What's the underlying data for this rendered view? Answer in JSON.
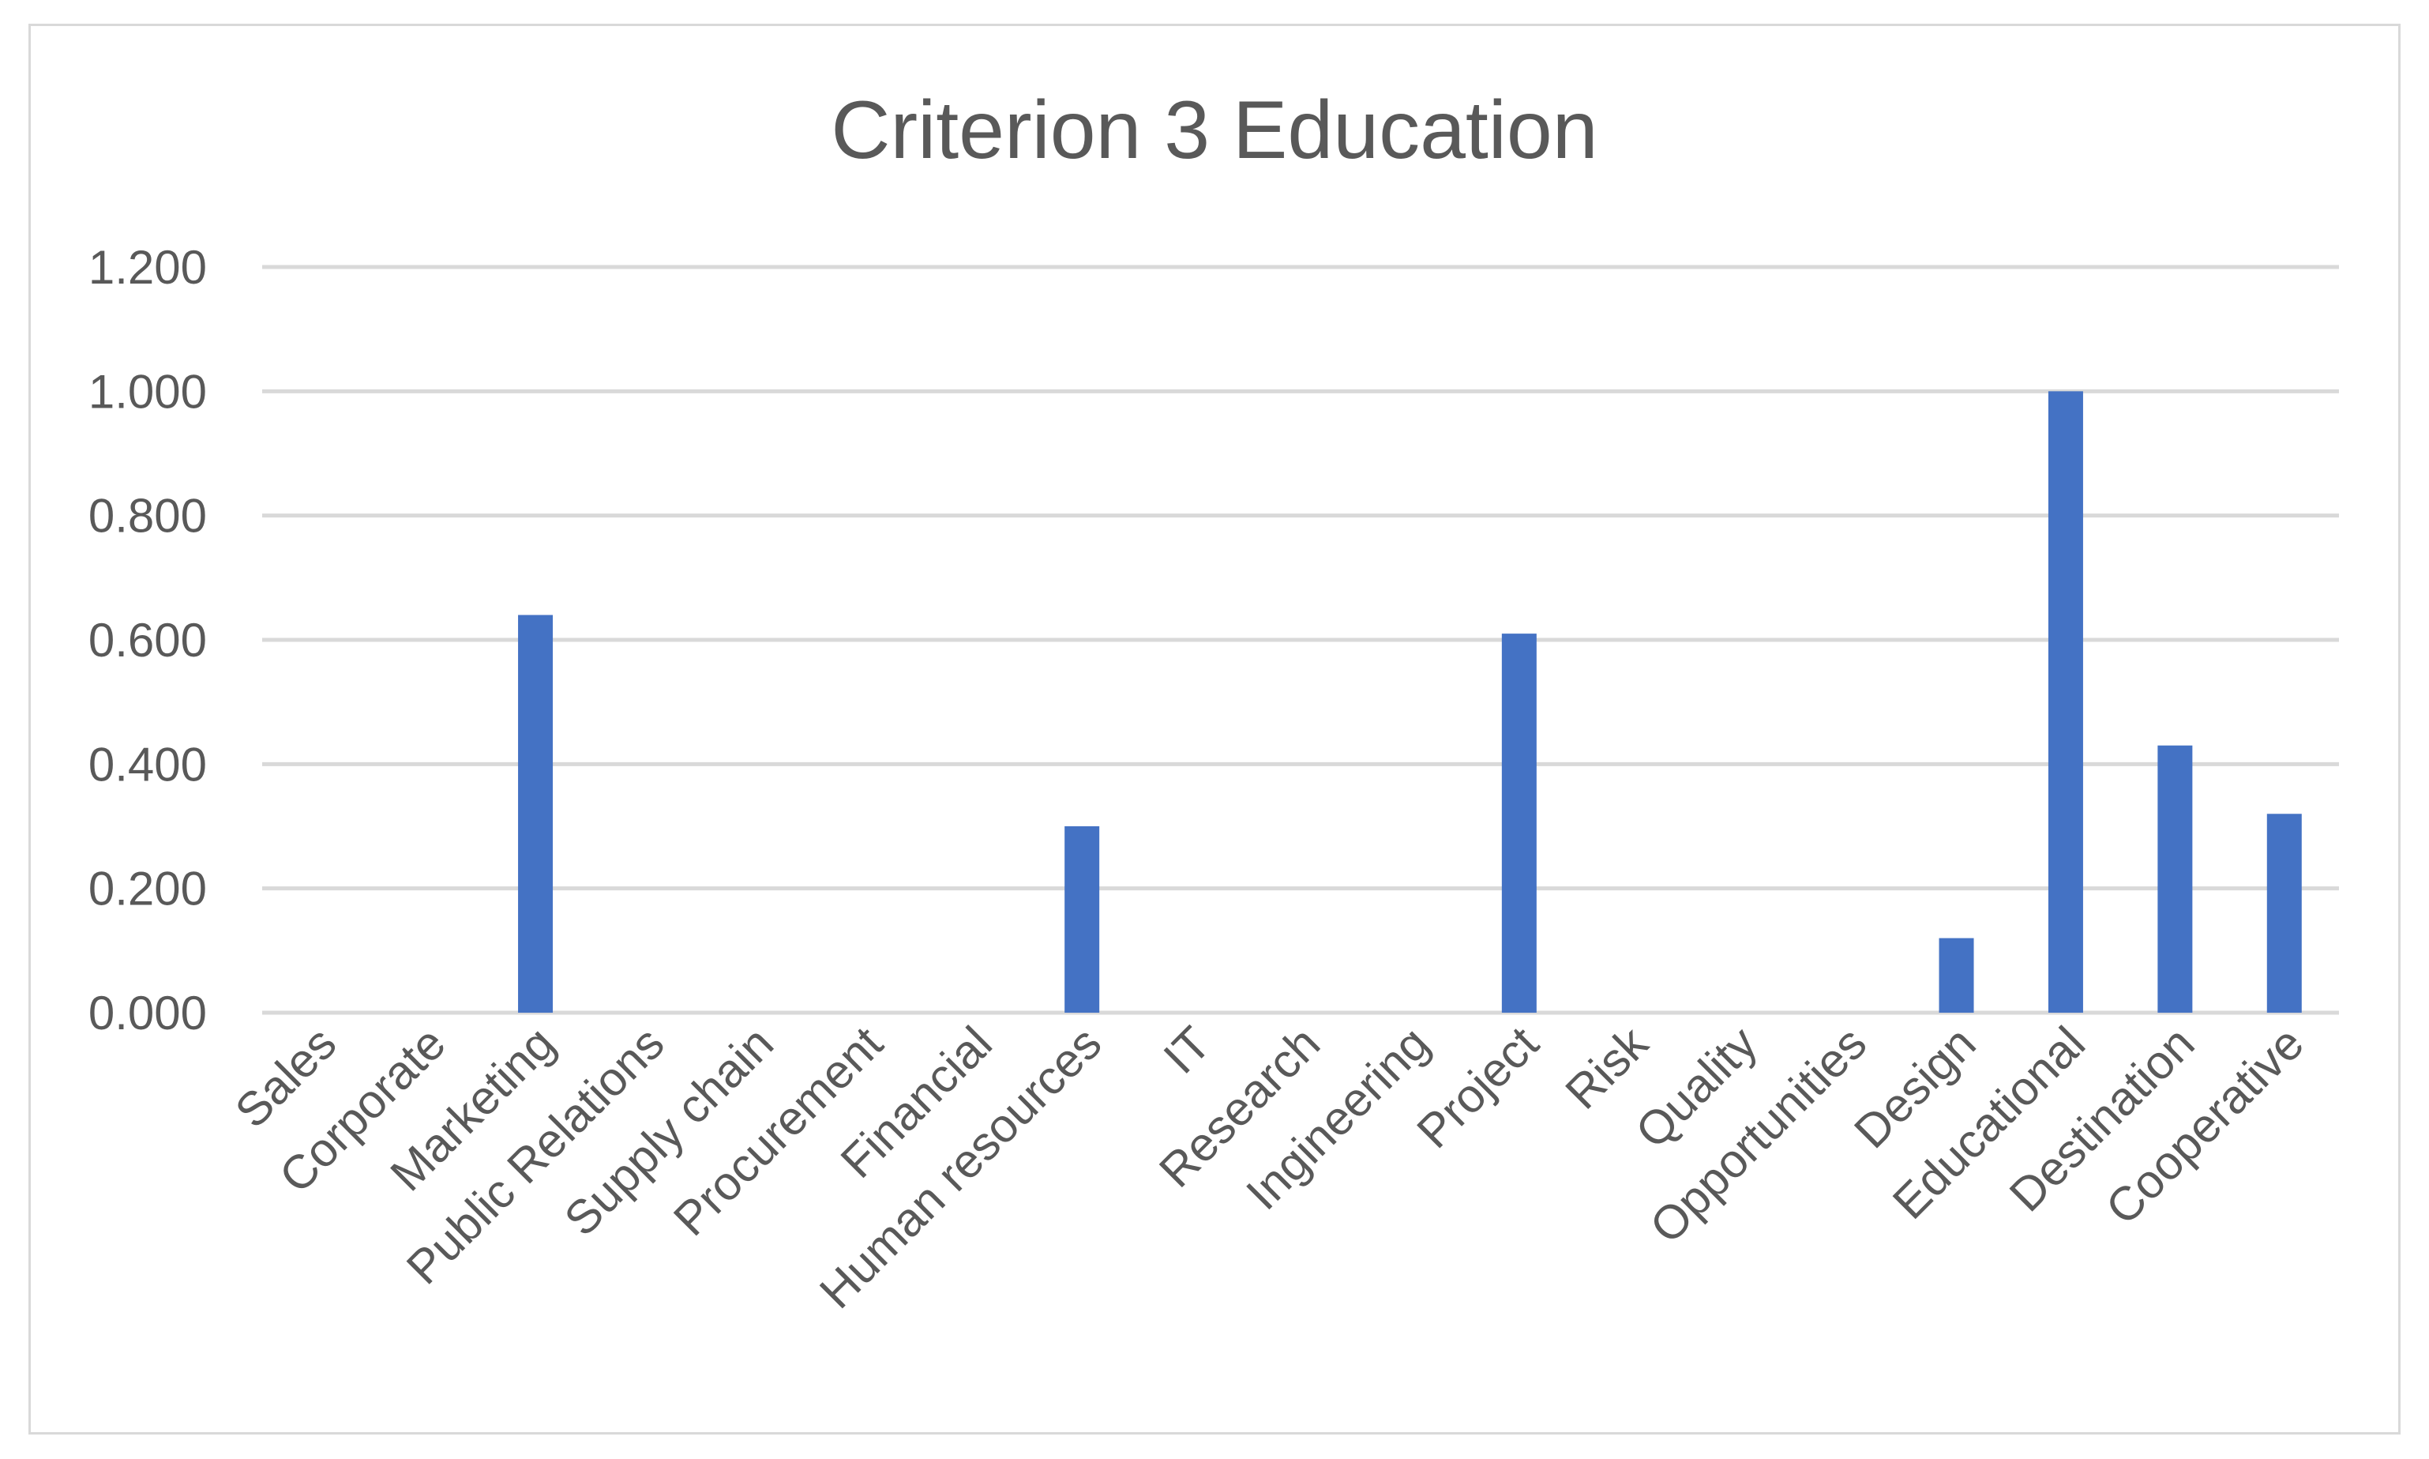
{
  "chart_data": {
    "type": "bar",
    "title": "Criterion 3 Education",
    "xlabel": "",
    "ylabel": "",
    "categories": [
      "Sales",
      "Corporate",
      "Marketing",
      "Public Relations",
      "Supply chain",
      "Procurement",
      "Financial",
      "Human resources",
      "IT",
      "Research",
      "Ingineering",
      "Project",
      "Risk",
      "Quality",
      "Opportunities",
      "Design",
      "Educational",
      "Destination",
      "Cooperative"
    ],
    "values": [
      0,
      0,
      0.64,
      0,
      0,
      0,
      0,
      0.3,
      0,
      0,
      0,
      0.61,
      0,
      0,
      0,
      0.12,
      1.0,
      0.43,
      0.32
    ],
    "ylim": [
      0,
      1.2
    ],
    "yticks": [
      "0.000",
      "0.200",
      "0.400",
      "0.600",
      "0.800",
      "1.000",
      "1.200"
    ],
    "grid": true,
    "legend": "none",
    "bar_color": "#4472c4"
  }
}
